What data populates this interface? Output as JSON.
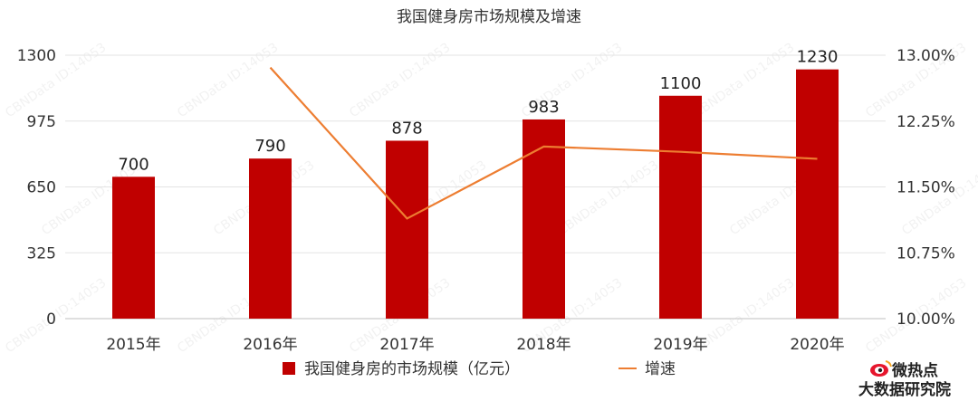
{
  "chart_data": {
    "type": "bar",
    "title": "我国健身房市场规模及增速",
    "categories": [
      "2015年",
      "2016年",
      "2017年",
      "2018年",
      "2019年",
      "2020年"
    ],
    "series": [
      {
        "name": "我国健身房的市场规模（亿元）",
        "kind": "bar",
        "axis": "left",
        "values": [
          700,
          790,
          878,
          983,
          1100,
          1230
        ],
        "color": "#c00000"
      },
      {
        "name": "增速",
        "kind": "line",
        "axis": "right",
        "values": [
          null,
          12.86,
          11.14,
          11.96,
          11.9,
          11.82
        ],
        "color": "#ed7d31"
      }
    ],
    "y_left": {
      "min": 0,
      "max": 1300,
      "ticks": [
        "0",
        "325",
        "650",
        "975",
        "1300"
      ]
    },
    "y_right": {
      "min": 10,
      "max": 13,
      "ticks": [
        "10.00%",
        "10.75%",
        "11.50%",
        "12.25%",
        "13.00%"
      ]
    },
    "grid": true,
    "legend": "bottom"
  },
  "watermark": "CBNData ID:14053",
  "logo": {
    "line1": "微热点",
    "line2": "大数据研究院",
    "icon": "weibo-eye-icon"
  }
}
